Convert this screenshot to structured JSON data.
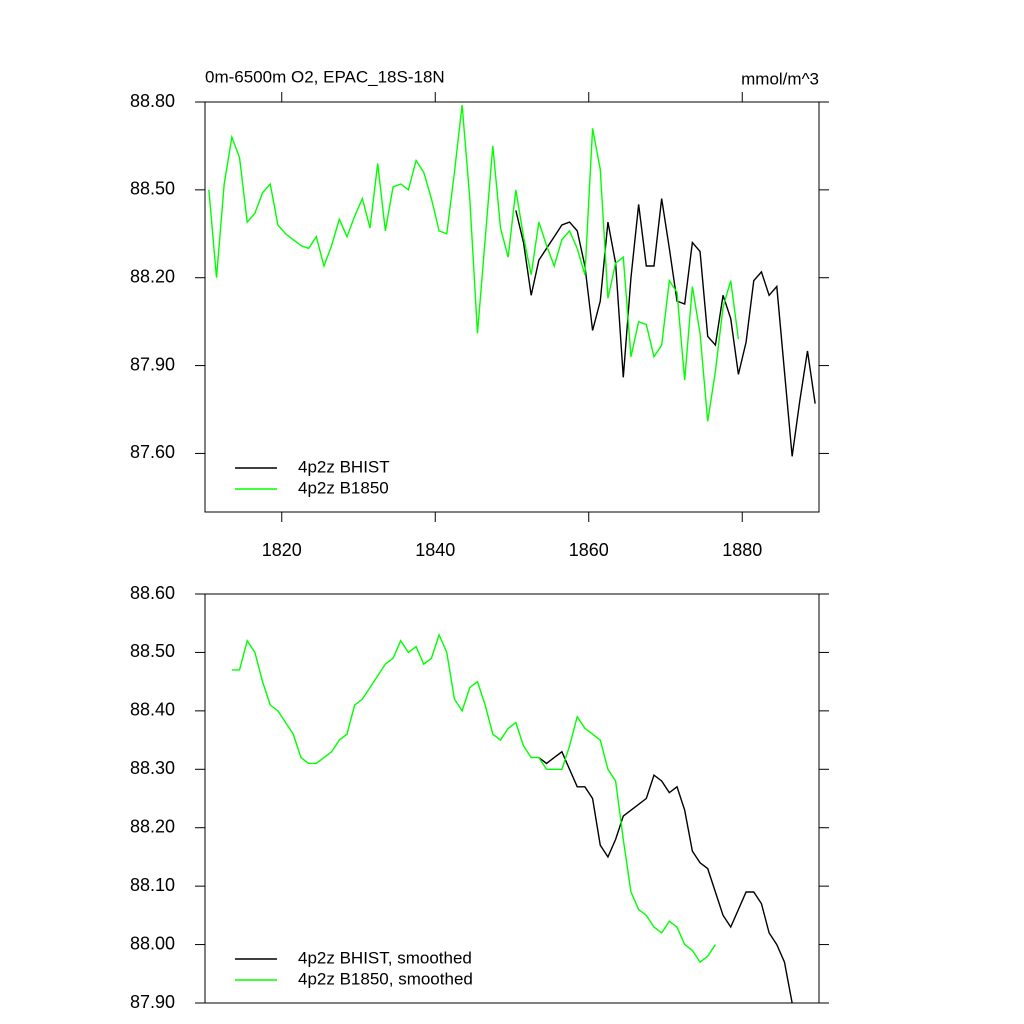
{
  "chart_data": [
    {
      "type": "line",
      "title": "0m-6500m O2, EPAC_18S-18N",
      "right_title": "mmol/m^3",
      "x": [
        1810.5,
        1811.5,
        1812.5,
        1813.5,
        1814.5,
        1815.5,
        1816.5,
        1817.5,
        1818.5,
        1819.5,
        1820.5,
        1821.5,
        1822.5,
        1823.5,
        1824.5,
        1825.5,
        1826.5,
        1827.5,
        1828.5,
        1829.5,
        1830.5,
        1831.5,
        1832.5,
        1833.5,
        1834.5,
        1835.5,
        1836.5,
        1837.5,
        1838.5,
        1839.5,
        1840.5,
        1841.5,
        1842.5,
        1843.5,
        1844.5,
        1845.5,
        1846.5,
        1847.5,
        1848.5,
        1849.5,
        1850.5,
        1851.5,
        1852.5,
        1853.5,
        1854.5,
        1855.5,
        1856.5,
        1857.5,
        1858.5,
        1859.5,
        1860.5,
        1861.5,
        1862.5,
        1863.5,
        1864.5,
        1865.5,
        1866.5,
        1867.5,
        1868.5,
        1869.5,
        1870.5,
        1871.5,
        1872.5,
        1873.5,
        1874.5,
        1875.5,
        1876.5,
        1877.5,
        1878.5,
        1879.5,
        1880.5,
        1881.5,
        1882.5,
        1883.5,
        1884.5,
        1885.5,
        1886.5,
        1887.5,
        1888.5,
        1889.5
      ],
      "series": [
        {
          "name": "4p2z BHIST",
          "color": "#000000",
          "values": [
            null,
            null,
            null,
            null,
            null,
            null,
            null,
            null,
            null,
            null,
            null,
            null,
            null,
            null,
            null,
            null,
            null,
            null,
            null,
            null,
            null,
            null,
            null,
            null,
            null,
            null,
            null,
            null,
            null,
            null,
            null,
            null,
            null,
            null,
            null,
            null,
            null,
            null,
            null,
            null,
            88.43,
            88.32,
            88.14,
            88.26,
            88.3,
            88.34,
            88.38,
            88.39,
            88.36,
            88.24,
            88.02,
            88.12,
            88.39,
            88.25,
            87.86,
            88.2,
            88.45,
            88.24,
            88.24,
            88.47,
            88.3,
            88.12,
            88.11,
            88.32,
            88.29,
            88.0,
            87.97,
            88.14,
            88.06,
            87.87,
            87.98,
            88.19,
            88.22,
            88.14,
            88.17,
            87.88,
            87.59,
            87.78,
            87.95,
            87.77
          ]
        },
        {
          "name": "4p2z B1850",
          "color": "#00ff00",
          "values": [
            88.5,
            88.2,
            88.52,
            88.68,
            88.61,
            88.39,
            88.42,
            88.49,
            88.52,
            88.38,
            88.35,
            88.33,
            88.31,
            88.3,
            88.34,
            88.24,
            88.31,
            88.4,
            88.34,
            88.41,
            88.47,
            88.37,
            88.59,
            88.36,
            88.51,
            88.52,
            88.5,
            88.6,
            88.56,
            88.47,
            88.36,
            88.35,
            88.56,
            88.79,
            88.47,
            88.01,
            88.33,
            88.65,
            88.37,
            88.27,
            88.5,
            88.34,
            88.21,
            88.39,
            88.31,
            88.24,
            88.33,
            88.36,
            88.3,
            88.21,
            88.71,
            88.57,
            88.13,
            88.25,
            88.27,
            87.93,
            88.05,
            88.04,
            87.93,
            87.97,
            88.19,
            88.15,
            87.85,
            88.17,
            88.01,
            87.71,
            87.88,
            88.1,
            88.19,
            87.99,
            null,
            null,
            null,
            null,
            null,
            null,
            null,
            null,
            null,
            null
          ]
        }
      ],
      "xlim": [
        1810,
        1890
      ],
      "xticks": [
        1820,
        1840,
        1860,
        1880
      ],
      "ylim": [
        87.4,
        88.8
      ],
      "yticks": [
        {
          "value": 87.6,
          "label": "87.60"
        },
        {
          "value": 87.9,
          "label": "87.90"
        },
        {
          "value": 88.2,
          "label": "88.20"
        },
        {
          "value": 88.5,
          "label": "88.50"
        },
        {
          "value": 88.8,
          "label": "88.80"
        }
      ],
      "legend": "lower left"
    },
    {
      "type": "line",
      "x": [
        1813.5,
        1814.5,
        1815.5,
        1816.5,
        1817.5,
        1818.5,
        1819.5,
        1820.5,
        1821.5,
        1822.5,
        1823.5,
        1824.5,
        1825.5,
        1826.5,
        1827.5,
        1828.5,
        1829.5,
        1830.5,
        1831.5,
        1832.5,
        1833.5,
        1834.5,
        1835.5,
        1836.5,
        1837.5,
        1838.5,
        1839.5,
        1840.5,
        1841.5,
        1842.5,
        1843.5,
        1844.5,
        1845.5,
        1846.5,
        1847.5,
        1848.5,
        1849.5,
        1850.5,
        1851.5,
        1852.5,
        1853.5,
        1854.5,
        1855.5,
        1856.5,
        1857.5,
        1858.5,
        1859.5,
        1860.5,
        1861.5,
        1862.5,
        1863.5,
        1864.5,
        1865.5,
        1866.5,
        1867.5,
        1868.5,
        1869.5,
        1870.5,
        1871.5,
        1872.5,
        1873.5,
        1874.5,
        1875.5,
        1876.5,
        1877.5,
        1878.5,
        1879.5,
        1880.5,
        1881.5,
        1882.5,
        1883.5,
        1884.5,
        1885.5,
        1886.5
      ],
      "series": [
        {
          "name": "4p2z BHIST, smoothed",
          "color": "#000000",
          "values": [
            null,
            null,
            null,
            null,
            null,
            null,
            null,
            null,
            null,
            null,
            null,
            null,
            null,
            null,
            null,
            null,
            null,
            null,
            null,
            null,
            null,
            null,
            null,
            null,
            null,
            null,
            null,
            null,
            null,
            null,
            null,
            null,
            null,
            null,
            null,
            null,
            null,
            null,
            null,
            null,
            88.32,
            88.31,
            88.32,
            88.33,
            88.3,
            88.27,
            88.27,
            88.25,
            88.17,
            88.15,
            88.18,
            88.22,
            88.23,
            88.24,
            88.25,
            88.29,
            88.28,
            88.26,
            88.27,
            88.23,
            88.16,
            88.14,
            88.13,
            88.09,
            88.05,
            88.03,
            88.06,
            88.09,
            88.09,
            88.07,
            88.02,
            88.0,
            87.97,
            87.9
          ]
        },
        {
          "name": "4p2z B1850, smoothed",
          "color": "#00ff00",
          "values": [
            88.47,
            88.47,
            88.52,
            88.5,
            88.45,
            88.41,
            88.4,
            88.38,
            88.36,
            88.32,
            88.31,
            88.31,
            88.32,
            88.33,
            88.35,
            88.36,
            88.41,
            88.42,
            88.44,
            88.46,
            88.48,
            88.49,
            88.52,
            88.5,
            88.51,
            88.48,
            88.49,
            88.53,
            88.5,
            88.42,
            88.4,
            88.44,
            88.45,
            88.41,
            88.36,
            88.35,
            88.37,
            88.38,
            88.34,
            88.32,
            88.32,
            88.3,
            88.3,
            88.3,
            88.34,
            88.39,
            88.37,
            88.36,
            88.35,
            88.3,
            88.28,
            88.18,
            88.09,
            88.06,
            88.05,
            88.03,
            88.02,
            88.04,
            88.03,
            88.0,
            87.99,
            87.97,
            87.98,
            88.0,
            null,
            null,
            null,
            null,
            null,
            null,
            null,
            null,
            null,
            null
          ]
        }
      ],
      "xlim": [
        1810,
        1890
      ],
      "ylim": [
        87.9,
        88.6
      ],
      "yticks": [
        {
          "value": 87.9,
          "label": "87.90"
        },
        {
          "value": 88.0,
          "label": "88.00"
        },
        {
          "value": 88.1,
          "label": "88.10"
        },
        {
          "value": 88.2,
          "label": "88.20"
        },
        {
          "value": 88.3,
          "label": "88.30"
        },
        {
          "value": 88.4,
          "label": "88.40"
        },
        {
          "value": 88.5,
          "label": "88.50"
        },
        {
          "value": 88.6,
          "label": "88.60"
        }
      ],
      "legend": "lower left"
    }
  ]
}
